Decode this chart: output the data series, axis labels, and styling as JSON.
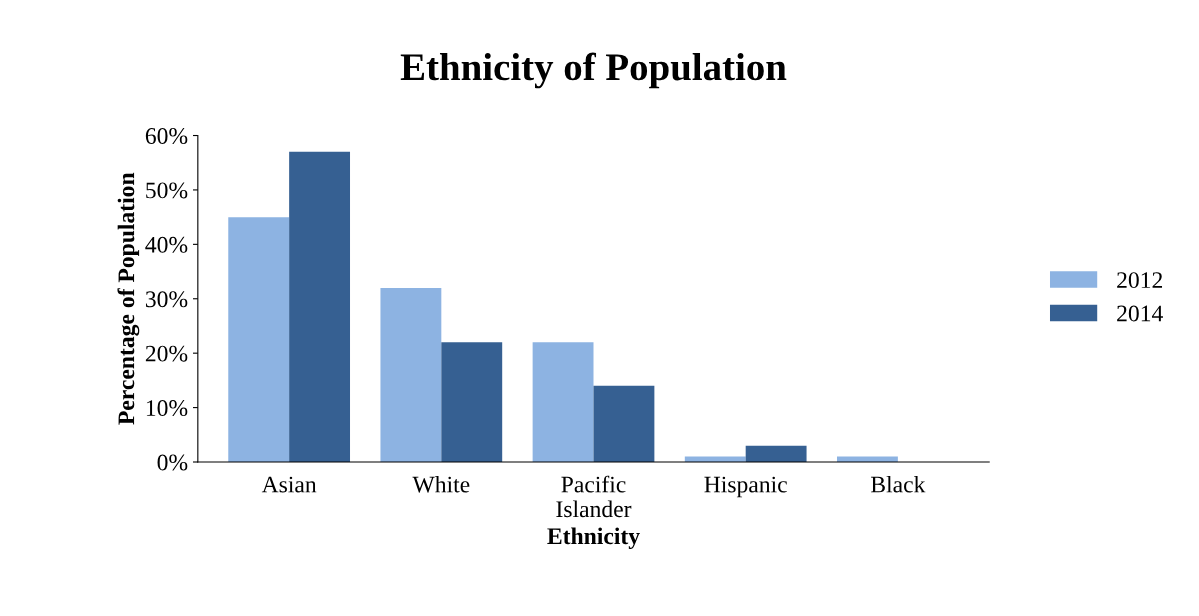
{
  "chart_data": {
    "type": "bar",
    "title": "Ethnicity of Population",
    "xlabel": "Ethnicity",
    "ylabel": "Percentage of Population",
    "categories": [
      "Asian",
      "White",
      "Pacific\nIslander",
      "Hispanic",
      "Black"
    ],
    "series": [
      {
        "name": "2012",
        "color": "#8db3e2",
        "values": [
          45,
          32,
          22,
          1,
          1
        ]
      },
      {
        "name": "2014",
        "color": "#366092",
        "values": [
          57,
          22,
          14,
          3,
          0
        ]
      }
    ],
    "ylim": [
      0,
      60
    ],
    "yticks": [
      {
        "value": 0,
        "label": "0%"
      },
      {
        "value": 10,
        "label": "10%"
      },
      {
        "value": 20,
        "label": "20%"
      },
      {
        "value": 30,
        "label": "30%"
      },
      {
        "value": 40,
        "label": "40%"
      },
      {
        "value": 50,
        "label": "50%"
      },
      {
        "value": 60,
        "label": "60%"
      }
    ],
    "legend": "right",
    "grid": false
  }
}
